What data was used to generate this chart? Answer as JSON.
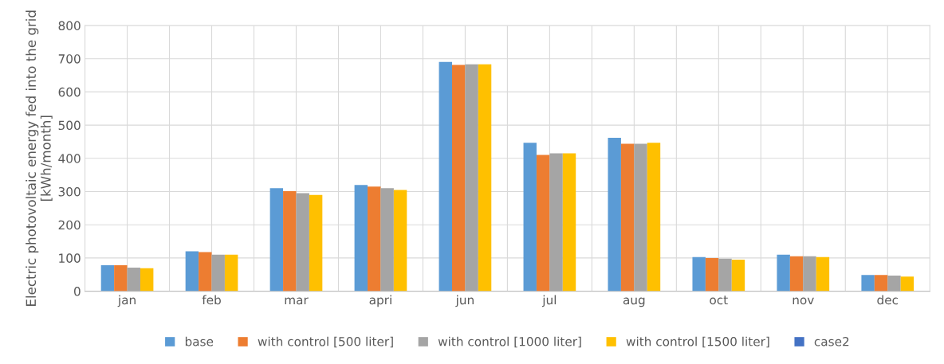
{
  "chart_data": {
    "type": "bar",
    "ylabel": "Electric photovoltaic energy fed into the grid [kWh/month]",
    "categories": [
      "jan",
      "feb",
      "mar",
      "apri",
      "jun",
      "jul",
      "aug",
      "oct",
      "nov",
      "dec"
    ],
    "series": [
      {
        "name": "base",
        "color": "#5b9bd5",
        "values": [
          78,
          120,
          310,
          320,
          690,
          447,
          462,
          103,
          110,
          49
        ]
      },
      {
        "name": "with control [500 liter]",
        "color": "#ed7d31",
        "values": [
          78,
          118,
          301,
          315,
          681,
          410,
          444,
          100,
          105,
          49
        ]
      },
      {
        "name": "with control [1000 liter]",
        "color": "#a5a5a5",
        "values": [
          71,
          110,
          295,
          310,
          683,
          415,
          444,
          98,
          105,
          47
        ]
      },
      {
        "name": "with control [1500 liter]",
        "color": "#ffc000",
        "values": [
          69,
          110,
          290,
          305,
          683,
          415,
          447,
          95,
          103,
          44
        ]
      },
      {
        "name": "case2",
        "color": "#4472c4",
        "values": [
          null,
          null,
          null,
          null,
          null,
          null,
          null,
          null,
          null,
          null
        ]
      }
    ],
    "ylim": [
      0,
      800
    ],
    "yticks": [
      0,
      100,
      200,
      300,
      400,
      500,
      600,
      700,
      800
    ],
    "grid": true,
    "legend": "bottom"
  }
}
